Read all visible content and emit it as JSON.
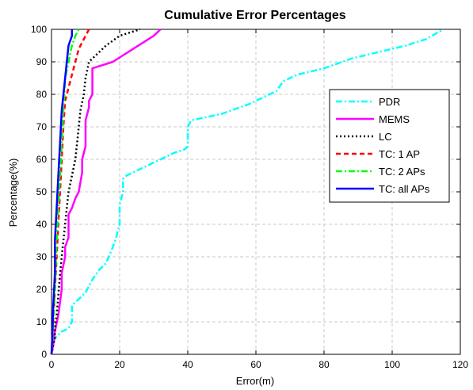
{
  "chart_data": {
    "type": "line",
    "title": "Cumulative Error Percentages",
    "xlabel": "Error(m)",
    "ylabel": "Percentage(%)",
    "xlim": [
      0,
      120
    ],
    "ylim": [
      0,
      100
    ],
    "xticks": [
      0,
      20,
      40,
      60,
      80,
      100,
      120
    ],
    "yticks": [
      0,
      10,
      20,
      30,
      40,
      50,
      60,
      70,
      80,
      90,
      100
    ],
    "grid": true,
    "legend_position": "right",
    "series": [
      {
        "name": "PDR",
        "color": "#00ffff",
        "dash": "dashdot",
        "points": [
          [
            0,
            0
          ],
          [
            0.5,
            3
          ],
          [
            1,
            5
          ],
          [
            3,
            7
          ],
          [
            5,
            8
          ],
          [
            6,
            10
          ],
          [
            6,
            14
          ],
          [
            6,
            15
          ],
          [
            8,
            17
          ],
          [
            10,
            19
          ],
          [
            12,
            23
          ],
          [
            14,
            26
          ],
          [
            16,
            28
          ],
          [
            18,
            33
          ],
          [
            19,
            36
          ],
          [
            20,
            40
          ],
          [
            20,
            46
          ],
          [
            21,
            50
          ],
          [
            21,
            54
          ],
          [
            22,
            55
          ],
          [
            24,
            56
          ],
          [
            28,
            58
          ],
          [
            32,
            60
          ],
          [
            36,
            62
          ],
          [
            39,
            63
          ],
          [
            40,
            64
          ],
          [
            40,
            70
          ],
          [
            41,
            72
          ],
          [
            50,
            74
          ],
          [
            58,
            77
          ],
          [
            62,
            79
          ],
          [
            66,
            81
          ],
          [
            68,
            84
          ],
          [
            72,
            86
          ],
          [
            80,
            88
          ],
          [
            88,
            91
          ],
          [
            96,
            93
          ],
          [
            104,
            95
          ],
          [
            110,
            97
          ],
          [
            115,
            100
          ]
        ]
      },
      {
        "name": "MEMS",
        "color": "#ff00ff",
        "dash": "solid",
        "points": [
          [
            0,
            0
          ],
          [
            0.5,
            3
          ],
          [
            1,
            7
          ],
          [
            2,
            12
          ],
          [
            3,
            20
          ],
          [
            3,
            25
          ],
          [
            4,
            30
          ],
          [
            4,
            33
          ],
          [
            5,
            36
          ],
          [
            5,
            40
          ],
          [
            5,
            43
          ],
          [
            6,
            45
          ],
          [
            7,
            48
          ],
          [
            8,
            50
          ],
          [
            9,
            56
          ],
          [
            9,
            60
          ],
          [
            10,
            64
          ],
          [
            10,
            70
          ],
          [
            10,
            72
          ],
          [
            11,
            76
          ],
          [
            11,
            78
          ],
          [
            12,
            80
          ],
          [
            12,
            84
          ],
          [
            12,
            88
          ],
          [
            18,
            90
          ],
          [
            24,
            94
          ],
          [
            30,
            98
          ],
          [
            32,
            100
          ]
        ]
      },
      {
        "name": "LC",
        "color": "#000000",
        "dash": "dot",
        "points": [
          [
            0,
            0
          ],
          [
            0.5,
            3
          ],
          [
            1,
            5
          ],
          [
            1,
            8
          ],
          [
            1.5,
            12
          ],
          [
            2,
            18
          ],
          [
            2.5,
            25
          ],
          [
            3,
            30
          ],
          [
            3.5,
            35
          ],
          [
            4,
            40
          ],
          [
            4.5,
            45
          ],
          [
            5,
            50
          ],
          [
            6,
            55
          ],
          [
            7,
            60
          ],
          [
            7.5,
            65
          ],
          [
            8,
            70
          ],
          [
            8.5,
            75
          ],
          [
            9.5,
            80
          ],
          [
            10,
            85
          ],
          [
            11,
            90
          ],
          [
            13,
            92
          ],
          [
            16,
            95
          ],
          [
            20,
            98
          ],
          [
            26,
            100
          ]
        ]
      },
      {
        "name": "TC: 1 AP",
        "color": "#ff0000",
        "dash": "dash",
        "points": [
          [
            0,
            0
          ],
          [
            0.3,
            5
          ],
          [
            0.5,
            10
          ],
          [
            1,
            20
          ],
          [
            1.5,
            30
          ],
          [
            2,
            40
          ],
          [
            2.5,
            50
          ],
          [
            3,
            60
          ],
          [
            3.5,
            70
          ],
          [
            4,
            78
          ],
          [
            5,
            82
          ],
          [
            6,
            86
          ],
          [
            7,
            90
          ],
          [
            8,
            94
          ],
          [
            9,
            96
          ],
          [
            10,
            98
          ],
          [
            11,
            100
          ]
        ]
      },
      {
        "name": "TC: 2 APs",
        "color": "#00ff00",
        "dash": "dashdot",
        "points": [
          [
            0,
            0
          ],
          [
            0.3,
            5
          ],
          [
            0.5,
            10
          ],
          [
            1,
            20
          ],
          [
            1.5,
            35
          ],
          [
            2,
            45
          ],
          [
            2.5,
            55
          ],
          [
            3,
            65
          ],
          [
            3.5,
            75
          ],
          [
            4,
            85
          ],
          [
            5,
            90
          ],
          [
            6,
            95
          ],
          [
            7,
            98
          ],
          [
            8,
            100
          ]
        ]
      },
      {
        "name": "TC: all APs",
        "color": "#0000ff",
        "dash": "solid",
        "points": [
          [
            0,
            0
          ],
          [
            0.2,
            5
          ],
          [
            0.5,
            15
          ],
          [
            1,
            25
          ],
          [
            1,
            35
          ],
          [
            1.5,
            45
          ],
          [
            2,
            55
          ],
          [
            2.5,
            65
          ],
          [
            3,
            75
          ],
          [
            4,
            85
          ],
          [
            4.5,
            90
          ],
          [
            5,
            95
          ],
          [
            6,
            98
          ],
          [
            6,
            100
          ]
        ]
      }
    ]
  }
}
